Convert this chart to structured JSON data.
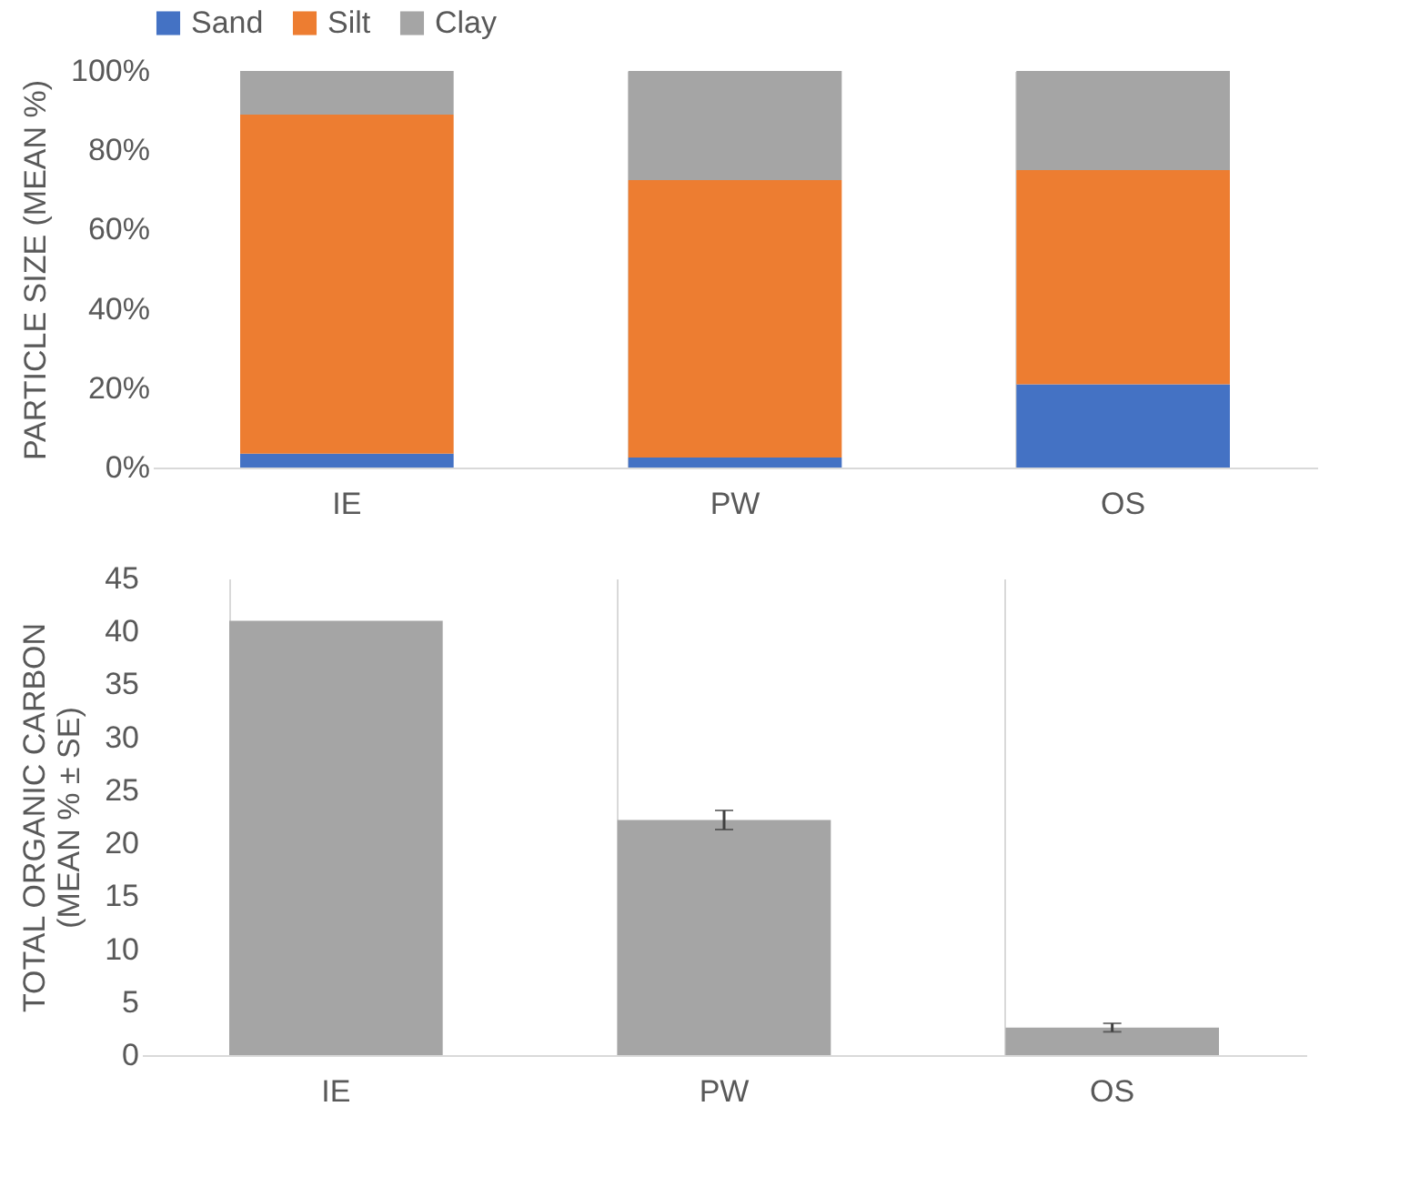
{
  "chart_data": [
    {
      "type": "bar",
      "stacked": true,
      "categories": [
        "IE",
        "PW",
        "OS"
      ],
      "ylabel": "PARTICLE SIZE (MEAN %)",
      "series": [
        {
          "name": "Sand",
          "color": "#4472c4",
          "values": [
            3.5,
            2.5,
            21
          ]
        },
        {
          "name": "Silt",
          "color": "#ed7d31",
          "values": [
            85.5,
            70,
            54
          ]
        },
        {
          "name": "Clay",
          "color": "#a5a5a5",
          "values": [
            11,
            27.5,
            25
          ]
        }
      ],
      "ylim": [
        0,
        100
      ],
      "yticks": [
        {
          "value": 0,
          "label": "0%"
        },
        {
          "value": 20,
          "label": "20%"
        },
        {
          "value": 40,
          "label": "40%"
        },
        {
          "value": 60,
          "label": "60%"
        },
        {
          "value": 80,
          "label": "80%"
        },
        {
          "value": 100,
          "label": "100%"
        }
      ],
      "legend": "top",
      "grid": "x"
    },
    {
      "type": "bar",
      "categories": [
        "IE",
        "PW",
        "OS"
      ],
      "ylabel": "TOTAL ORGANIC CARBON\n(MEAN % ± SE)",
      "color": "#a5a5a5",
      "values": [
        41,
        22.2,
        2.6
      ],
      "errors": [
        null,
        0.9,
        0.4
      ],
      "ylim": [
        0,
        45
      ],
      "yticks": [
        0,
        5,
        10,
        15,
        20,
        25,
        30,
        35,
        40,
        45
      ],
      "grid": "x"
    }
  ]
}
